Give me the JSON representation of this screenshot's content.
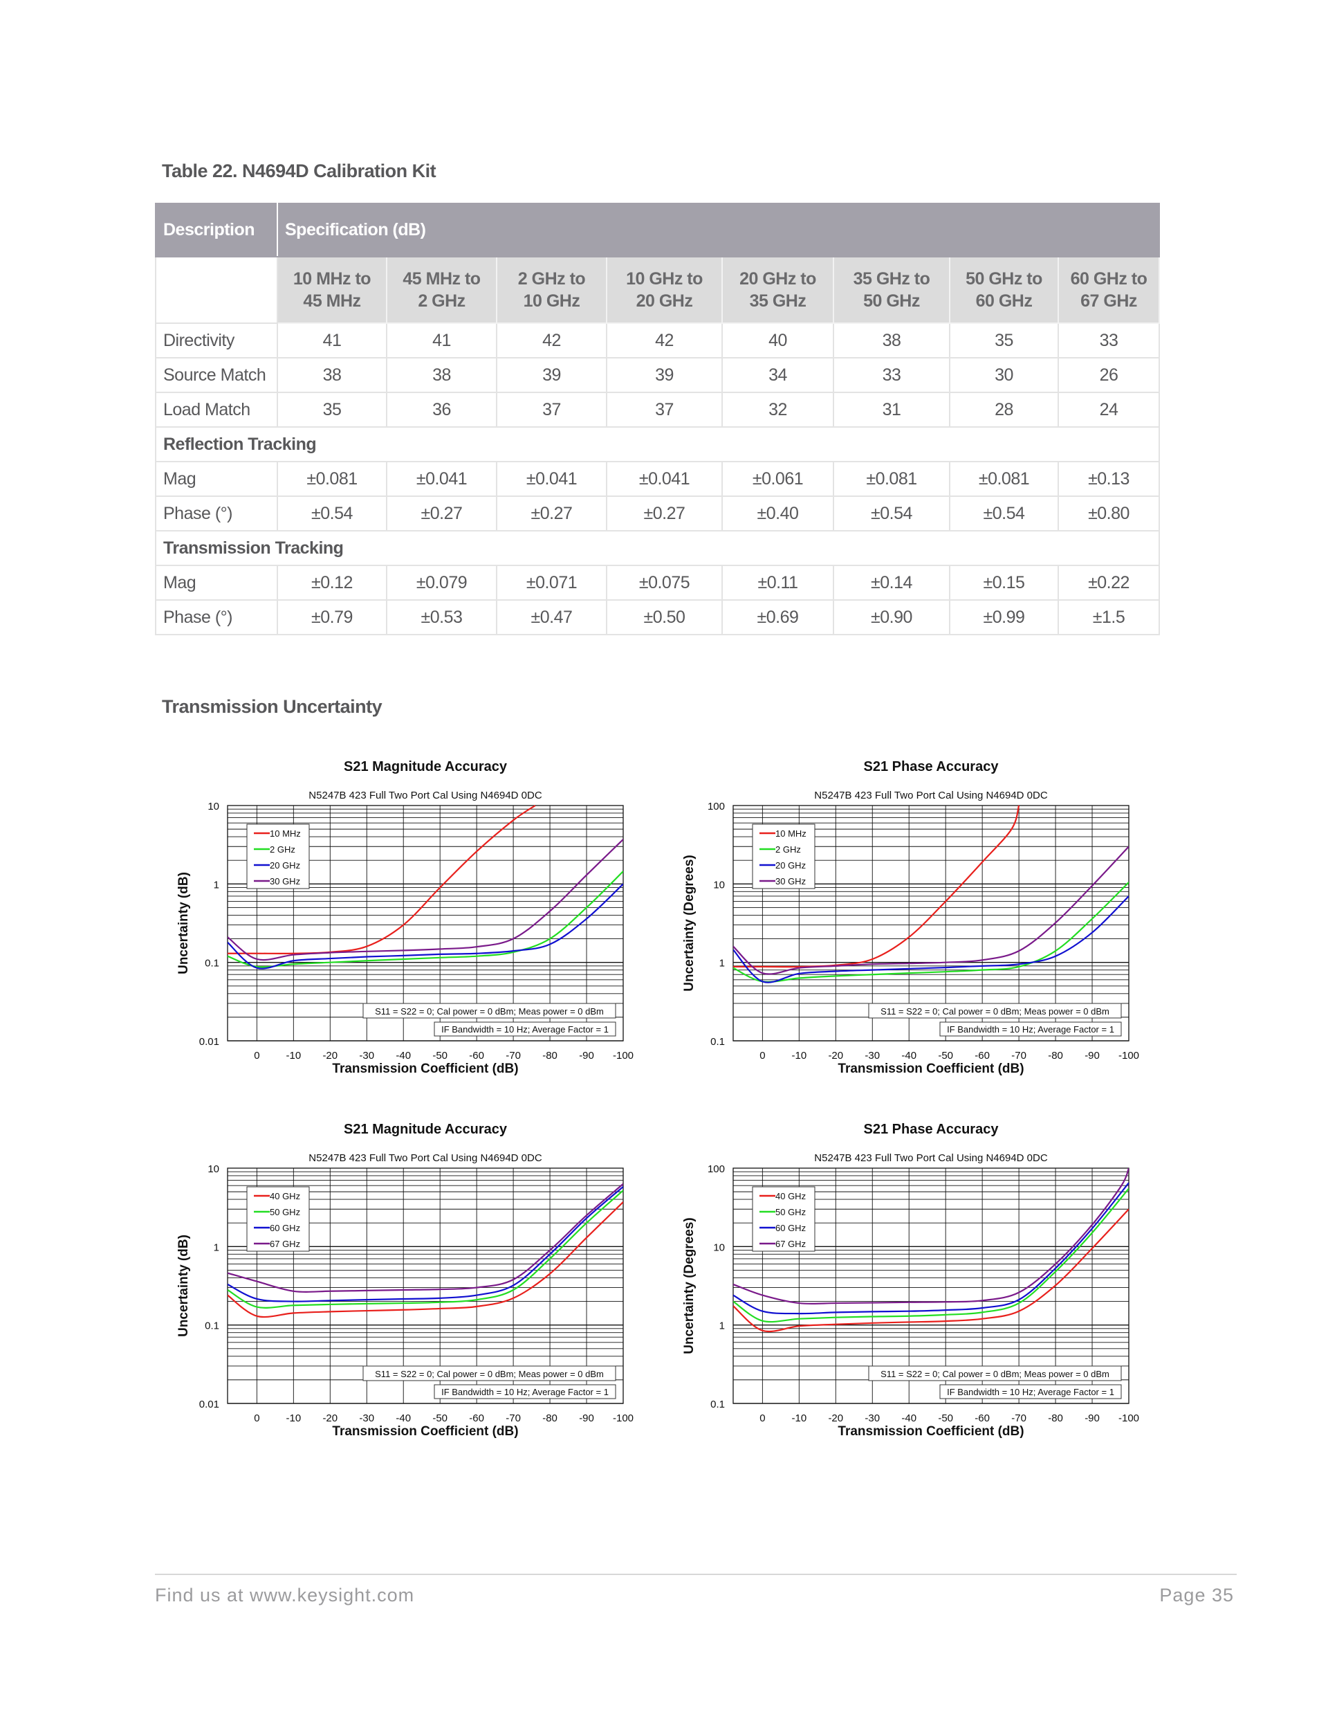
{
  "table": {
    "title": "Table 22. N4694D Calibration Kit",
    "header": {
      "description": "Description",
      "specification": "Specification (dB)"
    },
    "columns": [
      "10 MHz to\n45 MHz",
      "45 MHz to\n2 GHz",
      "2 GHz to\n10 GHz",
      "10 GHz to\n20 GHz",
      "20 GHz to\n35 GHz",
      "35 GHz to\n50 GHz",
      "50 GHz to\n60 GHz",
      "60 GHz to\n67 GHz"
    ],
    "rows": [
      {
        "label": "Directivity",
        "values": [
          "41",
          "41",
          "42",
          "42",
          "40",
          "38",
          "35",
          "33"
        ]
      },
      {
        "label": "Source Match",
        "values": [
          "38",
          "38",
          "39",
          "39",
          "34",
          "33",
          "30",
          "26"
        ]
      },
      {
        "label": "Load Match",
        "values": [
          "35",
          "36",
          "37",
          "37",
          "32",
          "31",
          "28",
          "24"
        ]
      },
      {
        "section": "Reflection Tracking"
      },
      {
        "label": "Mag",
        "values": [
          "±0.081",
          "±0.041",
          "±0.041",
          "±0.041",
          "±0.061",
          "±0.081",
          "±0.081",
          "±0.13"
        ]
      },
      {
        "label": "Phase (°)",
        "values": [
          "±0.54",
          "±0.27",
          "±0.27",
          "±0.27",
          "±0.40",
          "±0.54",
          "±0.54",
          "±0.80"
        ]
      },
      {
        "section": "Transmission Tracking"
      },
      {
        "label": "Mag",
        "values": [
          "±0.12",
          "±0.079",
          "±0.071",
          "±0.075",
          "±0.11",
          "±0.14",
          "±0.15",
          "±0.22"
        ]
      },
      {
        "label": "Phase (°)",
        "values": [
          "±0.79",
          "±0.53",
          "±0.47",
          "±0.50",
          "±0.69",
          "±0.90",
          "±0.99",
          "±1.5"
        ]
      }
    ]
  },
  "section_title": "Transmission Uncertainty",
  "chart_data": [
    {
      "type": "line",
      "title": "S21 Magnitude Accuracy",
      "subtitle": "N5247B 423 Full Two Port Cal Using N4694D 0DC",
      "xlabel": "Transmission Coefficient (dB)",
      "ylabel": "Uncertainty (dB)",
      "xlim": [
        8,
        -100
      ],
      "ylim": [
        0.01,
        10
      ],
      "yscale": "log",
      "grid": true,
      "legend": "top-left",
      "xticks": [
        "0",
        "-10",
        "-20",
        "-30",
        "-40",
        "-50",
        "-60",
        "-70",
        "-80",
        "-90",
        "-100"
      ],
      "yticks": [
        "0.01",
        "0.1",
        "1",
        "10"
      ],
      "annotations": [
        "S11 = S22 = 0; Cal power = 0 dBm; Meas power = 0 dBm",
        "IF Bandwidth = 10 Hz; Average Factor = 1"
      ],
      "series": [
        {
          "name": "10 MHz",
          "color": "#e8201c",
          "x": [
            8,
            0,
            -10,
            -20,
            -30,
            -40,
            -50,
            -60,
            -70,
            -76
          ],
          "y": [
            0.13,
            0.13,
            0.13,
            0.135,
            0.16,
            0.3,
            0.9,
            2.6,
            6.5,
            10
          ]
        },
        {
          "name": "2 GHz",
          "color": "#22dd22",
          "x": [
            8,
            0,
            -10,
            -20,
            -30,
            -40,
            -50,
            -60,
            -70,
            -80,
            -90,
            -100
          ],
          "y": [
            0.12,
            0.088,
            0.095,
            0.1,
            0.105,
            0.11,
            0.115,
            0.12,
            0.135,
            0.2,
            0.5,
            1.45
          ]
        },
        {
          "name": "20 GHz",
          "color": "#1010d0",
          "x": [
            8,
            0,
            -10,
            -20,
            -30,
            -40,
            -50,
            -60,
            -70,
            -80,
            -90,
            -100
          ],
          "y": [
            0.18,
            0.085,
            0.105,
            0.112,
            0.118,
            0.122,
            0.127,
            0.13,
            0.14,
            0.17,
            0.36,
            1.0
          ]
        },
        {
          "name": "30 GHz",
          "color": "#7a1a8a",
          "x": [
            8,
            0,
            -10,
            -20,
            -30,
            -40,
            -50,
            -60,
            -70,
            -80,
            -90,
            -100
          ],
          "y": [
            0.21,
            0.11,
            0.125,
            0.133,
            0.138,
            0.142,
            0.148,
            0.158,
            0.2,
            0.45,
            1.3,
            3.7
          ]
        }
      ]
    },
    {
      "type": "line",
      "title": "S21 Phase Accuracy",
      "subtitle": "N5247B 423 Full Two Port Cal Using N4694D 0DC",
      "xlabel": "Transmission Coefficient (dB)",
      "ylabel": "Uncertainty (Degrees)",
      "xlim": [
        8,
        -100
      ],
      "ylim": [
        0.1,
        100
      ],
      "yscale": "log",
      "grid": true,
      "legend": "top-left",
      "xticks": [
        "0",
        "-10",
        "-20",
        "-30",
        "-40",
        "-50",
        "-60",
        "-70",
        "-80",
        "-90",
        "-100"
      ],
      "yticks": [
        "0.1",
        "1",
        "10",
        "100"
      ],
      "annotations": [
        "S11 = S22 = 0; Cal power = 0 dBm; Meas power = 0 dBm",
        "IF Bandwidth = 10 Hz; Average Factor = 1"
      ],
      "series": [
        {
          "name": "10 MHz",
          "color": "#e8201c",
          "x": [
            8,
            0,
            -10,
            -20,
            -30,
            -40,
            -50,
            -60,
            -68,
            -70
          ],
          "y": [
            0.88,
            0.88,
            0.88,
            0.92,
            1.1,
            2.1,
            6,
            19,
            50,
            100
          ]
        },
        {
          "name": "2 GHz",
          "color": "#22dd22",
          "x": [
            8,
            0,
            -10,
            -20,
            -30,
            -40,
            -50,
            -60,
            -70,
            -80,
            -90,
            -100
          ],
          "y": [
            0.85,
            0.57,
            0.63,
            0.67,
            0.7,
            0.73,
            0.76,
            0.8,
            0.88,
            1.4,
            3.6,
            10.5
          ]
        },
        {
          "name": "20 GHz",
          "color": "#1010d0",
          "x": [
            8,
            0,
            -10,
            -20,
            -30,
            -40,
            -50,
            -60,
            -70,
            -80,
            -90,
            -100
          ],
          "y": [
            1.45,
            0.57,
            0.72,
            0.77,
            0.8,
            0.83,
            0.86,
            0.9,
            0.95,
            1.2,
            2.4,
            7
          ]
        },
        {
          "name": "30 GHz",
          "color": "#7a1a8a",
          "x": [
            8,
            0,
            -10,
            -20,
            -30,
            -40,
            -50,
            -60,
            -70,
            -80,
            -90,
            -100
          ],
          "y": [
            1.6,
            0.73,
            0.85,
            0.9,
            0.95,
            0.97,
            1.0,
            1.07,
            1.4,
            3.2,
            9.5,
            30
          ]
        }
      ]
    },
    {
      "type": "line",
      "title": "S21 Magnitude Accuracy",
      "subtitle": "N5247B 423 Full Two Port Cal Using N4694D 0DC",
      "xlabel": "Transmission Coefficient (dB)",
      "ylabel": "Uncertainty (dB)",
      "xlim": [
        8,
        -100
      ],
      "ylim": [
        0.01,
        10
      ],
      "yscale": "log",
      "grid": true,
      "legend": "top-left",
      "xticks": [
        "0",
        "-10",
        "-20",
        "-30",
        "-40",
        "-50",
        "-60",
        "-70",
        "-80",
        "-90",
        "-100"
      ],
      "yticks": [
        "0.01",
        "0.1",
        "1",
        "10"
      ],
      "annotations": [
        "S11 = S22 = 0; Cal power = 0 dBm; Meas power = 0 dBm",
        "IF Bandwidth = 10 Hz; Average Factor = 1"
      ],
      "series": [
        {
          "name": "40 GHz",
          "color": "#e8201c",
          "x": [
            8,
            0,
            -10,
            -20,
            -30,
            -40,
            -50,
            -60,
            -70,
            -80,
            -90,
            -100
          ],
          "y": [
            0.24,
            0.13,
            0.142,
            0.148,
            0.152,
            0.156,
            0.162,
            0.172,
            0.22,
            0.45,
            1.3,
            3.7
          ]
        },
        {
          "name": "50 GHz",
          "color": "#22dd22",
          "x": [
            8,
            0,
            -10,
            -20,
            -30,
            -40,
            -50,
            -60,
            -70,
            -80,
            -90,
            -100
          ],
          "y": [
            0.28,
            0.17,
            0.178,
            0.183,
            0.187,
            0.19,
            0.195,
            0.21,
            0.28,
            0.7,
            2.0,
            5.2
          ]
        },
        {
          "name": "60 GHz",
          "color": "#1010d0",
          "x": [
            8,
            0,
            -10,
            -20,
            -30,
            -40,
            -50,
            -60,
            -70,
            -80,
            -90,
            -100
          ],
          "y": [
            0.33,
            0.215,
            0.2,
            0.205,
            0.21,
            0.215,
            0.22,
            0.24,
            0.32,
            0.8,
            2.3,
            5.8
          ]
        },
        {
          "name": "67 GHz",
          "color": "#7a1a8a",
          "x": [
            8,
            0,
            -10,
            -20,
            -30,
            -40,
            -50,
            -60,
            -70,
            -80,
            -90,
            -100
          ],
          "y": [
            0.46,
            0.36,
            0.27,
            0.27,
            0.275,
            0.28,
            0.285,
            0.3,
            0.38,
            0.9,
            2.5,
            6.3
          ]
        }
      ]
    },
    {
      "type": "line",
      "title": "S21 Phase Accuracy",
      "subtitle": "N5247B 423 Full Two Port Cal Using N4694D 0DC",
      "xlabel": "Transmission Coefficient (dB)",
      "ylabel": "Uncertainty (Degrees)",
      "xlim": [
        8,
        -100
      ],
      "ylim": [
        0.1,
        100
      ],
      "yscale": "log",
      "grid": true,
      "legend": "top-left",
      "xticks": [
        "0",
        "-10",
        "-20",
        "-30",
        "-40",
        "-50",
        "-60",
        "-70",
        "-80",
        "-90",
        "-100"
      ],
      "yticks": [
        "0.1",
        "1",
        "10",
        "100"
      ],
      "annotations": [
        "S11 = S22 = 0; Cal power = 0 dBm; Meas power = 0 dBm",
        "IF Bandwidth = 10 Hz; Average Factor = 1"
      ],
      "series": [
        {
          "name": "40 GHz",
          "color": "#e8201c",
          "x": [
            8,
            0,
            -10,
            -20,
            -30,
            -40,
            -50,
            -60,
            -70,
            -80,
            -90,
            -100
          ],
          "y": [
            1.75,
            0.85,
            0.97,
            1.02,
            1.06,
            1.09,
            1.12,
            1.2,
            1.5,
            3.2,
            9.5,
            30
          ]
        },
        {
          "name": "50 GHz",
          "color": "#22dd22",
          "x": [
            8,
            0,
            -10,
            -20,
            -30,
            -40,
            -50,
            -60,
            -70,
            -80,
            -90,
            -100
          ],
          "y": [
            2.0,
            1.13,
            1.2,
            1.25,
            1.28,
            1.3,
            1.35,
            1.45,
            1.9,
            4.8,
            15,
            55
          ]
        },
        {
          "name": "60 GHz",
          "color": "#1010d0",
          "x": [
            8,
            0,
            -10,
            -20,
            -30,
            -40,
            -50,
            -60,
            -70,
            -80,
            -90,
            -100
          ],
          "y": [
            2.4,
            1.5,
            1.4,
            1.45,
            1.48,
            1.5,
            1.55,
            1.65,
            2.1,
            5.3,
            17,
            65
          ]
        },
        {
          "name": "67 GHz",
          "color": "#7a1a8a",
          "x": [
            8,
            0,
            -10,
            -20,
            -30,
            -40,
            -50,
            -60,
            -70,
            -80,
            -90,
            -98,
            -100
          ],
          "y": [
            3.3,
            2.4,
            1.9,
            1.9,
            1.92,
            1.95,
            1.97,
            2.05,
            2.6,
            6,
            19,
            60,
            100
          ]
        }
      ]
    }
  ],
  "footer": {
    "website": "Find us at www.keysight.com",
    "page": "Page 35"
  }
}
